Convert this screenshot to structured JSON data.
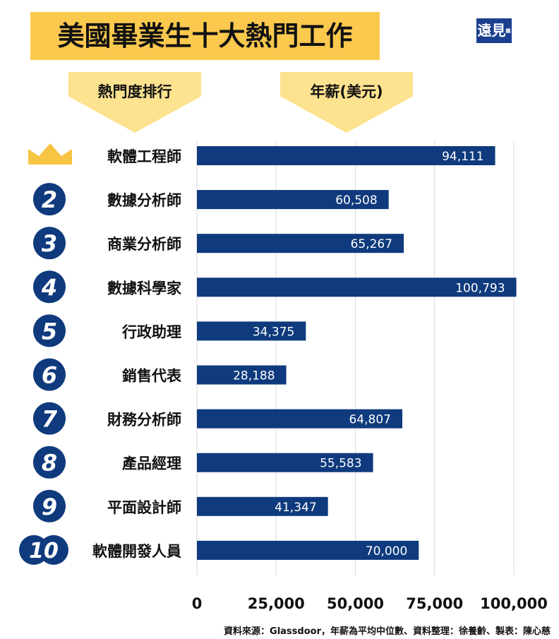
{
  "header": {
    "title": "美國畢業生十大熱門工作",
    "logo_text": "遠見",
    "logo_sub": "雜誌",
    "rank_label": "熱門度排行",
    "salary_label": "年薪(美元)"
  },
  "chart_data": {
    "type": "bar",
    "orientation": "horizontal",
    "title": "美國畢業生十大熱門工作",
    "xlabel": "年薪(美元)",
    "ylabel": "熱門度排行",
    "categories": [
      "軟體工程師",
      "數據分析師",
      "商業分析師",
      "數據科學家",
      "行政助理",
      "銷售代表",
      "財務分析師",
      "產品經理",
      "平面設計師",
      "軟體開發人員"
    ],
    "ranks": [
      "1",
      "2",
      "3",
      "4",
      "5",
      "6",
      "7",
      "8",
      "9",
      "10"
    ],
    "values": [
      94111,
      60508,
      65267,
      100793,
      34375,
      28188,
      64807,
      55583,
      41347,
      70000
    ],
    "value_labels": [
      "94,111",
      "60,508",
      "65,267",
      "100,793",
      "34,375",
      "28,188",
      "64,807",
      "55,583",
      "41,347",
      "70,000"
    ],
    "xlim": [
      0,
      105000
    ],
    "ticks": [
      0,
      25000,
      50000,
      75000,
      100000
    ],
    "tick_labels": [
      "0",
      "25,000",
      "50,000",
      "75,000",
      "100,000"
    ],
    "grid": true,
    "colors": {
      "bar": "#0f3a7d",
      "badge": "#0f3a7d",
      "crown": "#f7c444"
    }
  },
  "footer": "資料來源：Glassdoor，年薪為平均中位數、資料整理：徐養齡、製表：陳心慈"
}
